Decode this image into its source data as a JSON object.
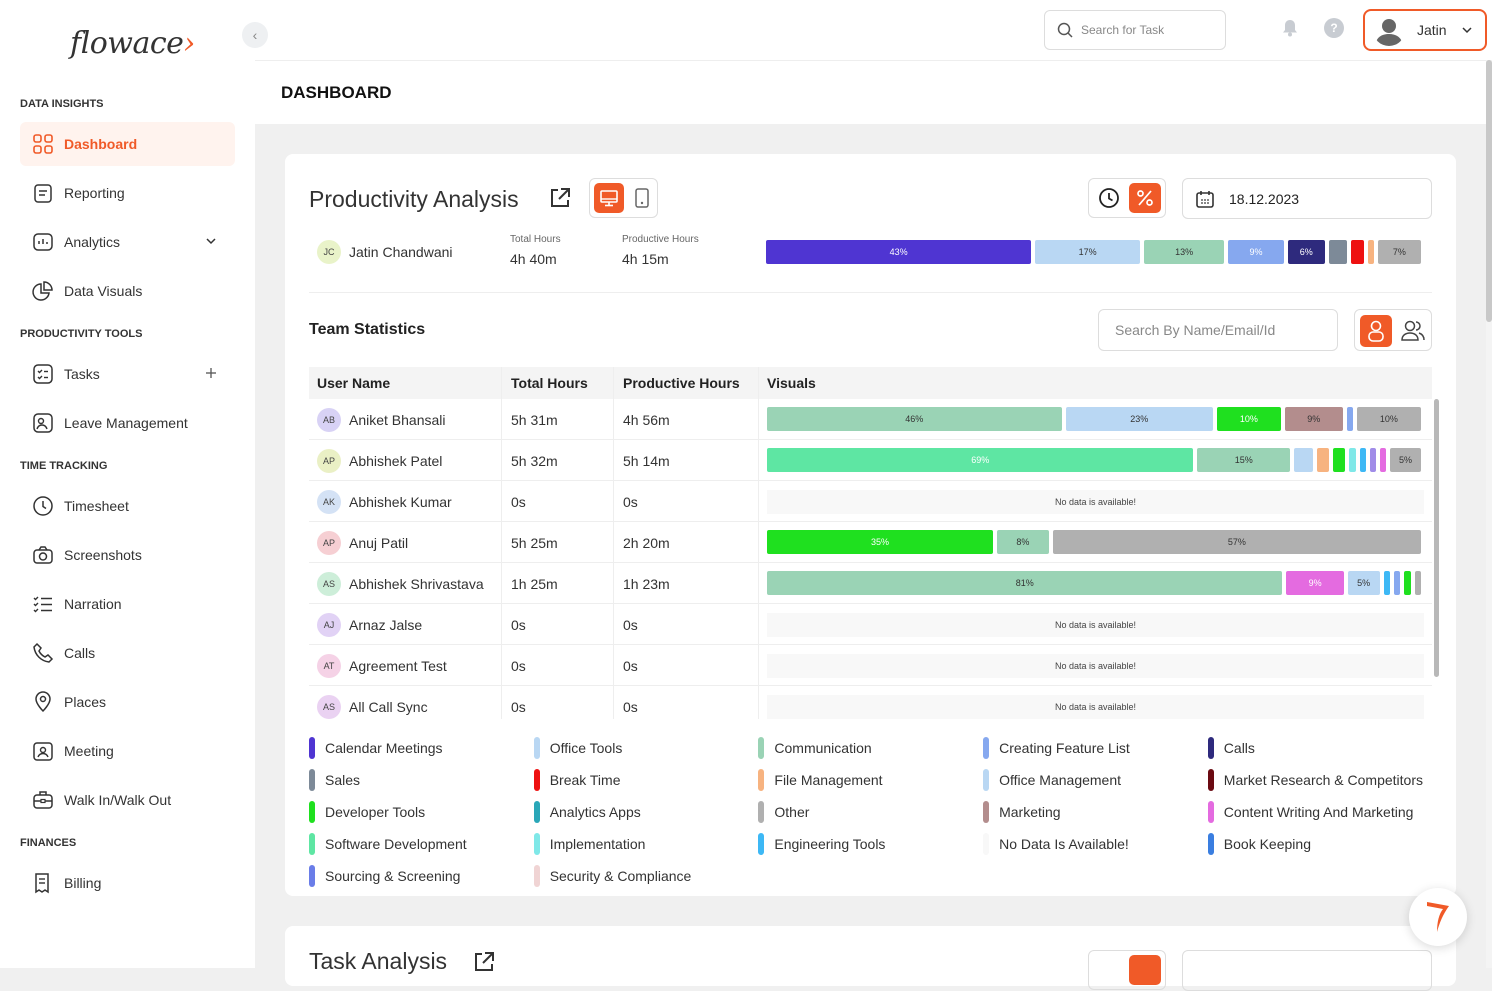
{
  "logo": {
    "text_main": "flowace",
    "mark": "›"
  },
  "sidebar": {
    "sections": [
      {
        "title": "DATA INSIGHTS",
        "items": [
          {
            "label": "Dashboard",
            "icon": "dashboard-icon",
            "active": true
          },
          {
            "label": "Reporting",
            "icon": "reporting-icon"
          },
          {
            "label": "Analytics",
            "icon": "analytics-icon",
            "trail": "chevron-down"
          },
          {
            "label": "Data Visuals",
            "icon": "pie-chart-icon"
          }
        ]
      },
      {
        "title": "PRODUCTIVITY TOOLS",
        "items": [
          {
            "label": "Tasks",
            "icon": "tasks-icon",
            "trail": "plus"
          },
          {
            "label": "Leave Management",
            "icon": "leave-icon"
          }
        ]
      },
      {
        "title": "TIME TRACKING",
        "items": [
          {
            "label": "Timesheet",
            "icon": "clock-icon"
          },
          {
            "label": "Screenshots",
            "icon": "camera-icon"
          },
          {
            "label": "Narration",
            "icon": "narration-icon"
          },
          {
            "label": "Calls",
            "icon": "phone-icon"
          },
          {
            "label": "Places",
            "icon": "location-icon"
          },
          {
            "label": "Meeting",
            "icon": "meeting-icon"
          },
          {
            "label": "Walk In/Walk Out",
            "icon": "walk-icon"
          }
        ]
      },
      {
        "title": "FINANCES",
        "items": [
          {
            "label": "Billing",
            "icon": "billing-icon"
          }
        ]
      }
    ]
  },
  "topbar": {
    "search_placeholder": "Search for Task",
    "user_name": "Jatin"
  },
  "page": {
    "title": "DASHBOARD"
  },
  "productivity": {
    "title": "Productivity Analysis",
    "date": "18.12.2023",
    "me": {
      "initials": "JC",
      "name": "Jatin Chandwani",
      "total_label": "Total Hours",
      "total": "4h 40m",
      "productive_label": "Productive Hours",
      "productive": "4h 15m",
      "segments": [
        {
          "pct": 43,
          "label": "43%",
          "color": "#4f35d2",
          "text": "#ffffff"
        },
        {
          "pct": 17,
          "label": "17%",
          "color": "#b9d7f3"
        },
        {
          "pct": 13,
          "label": "13%",
          "color": "#9ad3b5"
        },
        {
          "pct": 9,
          "label": "9%",
          "color": "#86a8ef",
          "text": "#ffffff"
        },
        {
          "pct": 6,
          "label": "6%",
          "color": "#2e2a7d",
          "text": "#ffffff"
        },
        {
          "pct": 3,
          "label": "",
          "color": "#7d8a98"
        },
        {
          "pct": 2,
          "label": "",
          "color": "#ee1111"
        },
        {
          "pct": 1,
          "label": "",
          "color": "#f7b380"
        },
        {
          "pct": 7,
          "label": "7%",
          "color": "#b0b0b0"
        }
      ]
    }
  },
  "team": {
    "title": "Team Statistics",
    "search_placeholder": "Search By Name/Email/Id",
    "columns": [
      "User Name",
      "Total Hours",
      "Productive Hours",
      "Visuals"
    ],
    "no_data": "No data is available!",
    "rows": [
      {
        "initials": "AB",
        "av": "#d8d2f5",
        "name": "Aniket Bhansali",
        "total": "5h 31m",
        "productive": "4h 56m",
        "segments": [
          {
            "pct": 46,
            "label": "46%",
            "color": "#9ad3b5"
          },
          {
            "pct": 23,
            "label": "23%",
            "color": "#b9d7f3"
          },
          {
            "pct": 10,
            "label": "10%",
            "color": "#1fe01f",
            "text": "#ffffff"
          },
          {
            "pct": 9,
            "label": "9%",
            "color": "#b38d8d"
          },
          {
            "pct": 1,
            "label": "",
            "color": "#86a8ef"
          },
          {
            "pct": 10,
            "label": "10%",
            "color": "#b0b0b0"
          }
        ]
      },
      {
        "initials": "AP",
        "av": "#eaf0c5",
        "name": "Abhishek Patel",
        "total": "5h 32m",
        "productive": "5h 14m",
        "segments": [
          {
            "pct": 69,
            "label": "69%",
            "color": "#5ee6a3",
            "text": "#ffffff"
          },
          {
            "pct": 15,
            "label": "15%",
            "color": "#9ad3b5"
          },
          {
            "pct": 3,
            "label": "",
            "color": "#b9d7f3"
          },
          {
            "pct": 2,
            "label": "",
            "color": "#f7b380"
          },
          {
            "pct": 2,
            "label": "",
            "color": "#1fe01f"
          },
          {
            "pct": 1,
            "label": "",
            "color": "#7fe8e8"
          },
          {
            "pct": 1,
            "label": "",
            "color": "#3db8f5"
          },
          {
            "pct": 1,
            "label": "",
            "color": "#a08ce8"
          },
          {
            "pct": 1,
            "label": "",
            "color": "#e46be0"
          },
          {
            "pct": 5,
            "label": "5%",
            "color": "#b0b0b0"
          }
        ]
      },
      {
        "initials": "AK",
        "av": "#d4e2f5",
        "name": "Abhishek Kumar",
        "total": "0s",
        "productive": "0s",
        "segments": []
      },
      {
        "initials": "AP",
        "av": "#f6cfd3",
        "name": "Anuj Patil",
        "total": "5h 25m",
        "productive": "2h 20m",
        "segments": [
          {
            "pct": 35,
            "label": "35%",
            "color": "#1fe01f",
            "text": "#ffffff"
          },
          {
            "pct": 8,
            "label": "8%",
            "color": "#9ad3b5"
          },
          {
            "pct": 57,
            "label": "57%",
            "color": "#b0b0b0"
          }
        ]
      },
      {
        "initials": "AS",
        "av": "#cdeed9",
        "name": "Abhishek Shrivastava",
        "total": "1h 25m",
        "productive": "1h 23m",
        "segments": [
          {
            "pct": 81,
            "label": "81%",
            "color": "#9ad3b5"
          },
          {
            "pct": 9,
            "label": "9%",
            "color": "#e46be0",
            "text": "#ffffff"
          },
          {
            "pct": 5,
            "label": "5%",
            "color": "#b9d7f3"
          },
          {
            "pct": 1,
            "label": "",
            "color": "#3db8f5"
          },
          {
            "pct": 1,
            "label": "",
            "color": "#86a8ef"
          },
          {
            "pct": 1,
            "label": "",
            "color": "#1fe01f"
          },
          {
            "pct": 1,
            "label": "",
            "color": "#b0b0b0"
          }
        ]
      },
      {
        "initials": "AJ",
        "av": "#e1d2f5",
        "name": "Arnaz Jalse",
        "total": "0s",
        "productive": "0s",
        "segments": []
      },
      {
        "initials": "AT",
        "av": "#f5d2e6",
        "name": "Agreement Test",
        "total": "0s",
        "productive": "0s",
        "segments": []
      },
      {
        "initials": "AS",
        "av": "#ead2f2",
        "name": "All Call Sync",
        "total": "0s",
        "productive": "0s",
        "segments": []
      }
    ]
  },
  "legend": [
    {
      "label": "Calendar Meetings",
      "color": "#4f35d2"
    },
    {
      "label": "Office Tools",
      "color": "#b9d7f3"
    },
    {
      "label": "Communication",
      "color": "#9ad3b5"
    },
    {
      "label": "Creating Feature List",
      "color": "#86a8ef"
    },
    {
      "label": "Calls",
      "color": "#2e2a7d"
    },
    {
      "label": "Sales",
      "color": "#7d8a98"
    },
    {
      "label": "Break Time",
      "color": "#ee1111"
    },
    {
      "label": "File Management",
      "color": "#f7b380"
    },
    {
      "label": "Office Management",
      "color": "#b9d7f3"
    },
    {
      "label": "Market Research & Competitors",
      "color": "#6b0a12"
    },
    {
      "label": "Developer Tools",
      "color": "#1fe01f"
    },
    {
      "label": "Analytics Apps",
      "color": "#2aa7b8"
    },
    {
      "label": "Other",
      "color": "#b0b0b0"
    },
    {
      "label": "Marketing",
      "color": "#b38d8d"
    },
    {
      "label": "Content Writing And Marketing",
      "color": "#e46be0"
    },
    {
      "label": "Software Development",
      "color": "#5ee6a3"
    },
    {
      "label": "Implementation",
      "color": "#7fe8e8"
    },
    {
      "label": "Engineering Tools",
      "color": "#3db8f5"
    },
    {
      "label": "No Data Is Available!",
      "color": "#f8f8f8"
    },
    {
      "label": "Book Keeping",
      "color": "#3a7ee0"
    },
    {
      "label": "Sourcing & Screening",
      "color": "#6a7de8"
    },
    {
      "label": "Security & Compliance",
      "color": "#f0d4d4"
    }
  ],
  "task_analysis": {
    "title": "Task Analysis"
  }
}
